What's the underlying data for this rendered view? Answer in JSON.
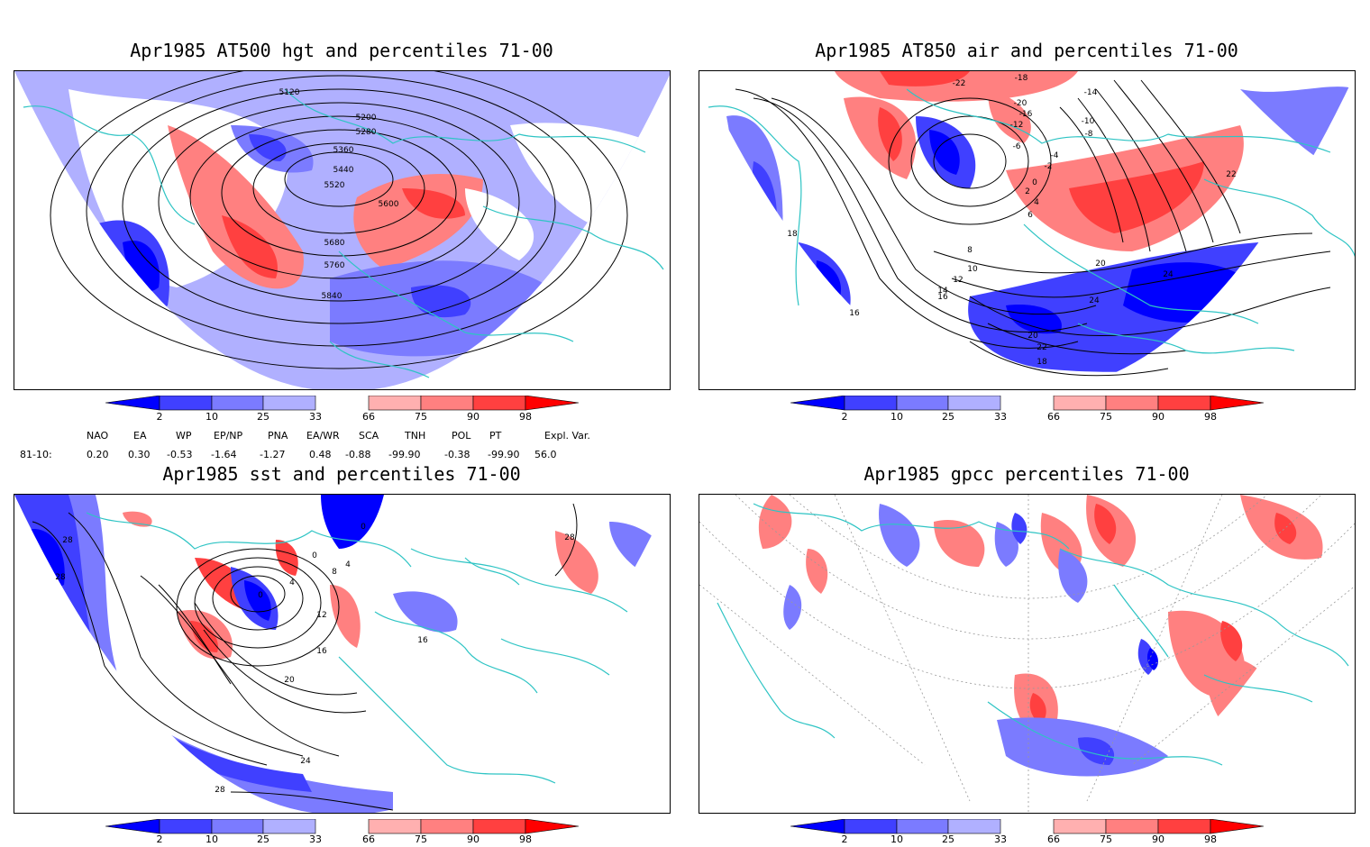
{
  "panels": [
    {
      "id": "p1",
      "title": "Apr1985 AT500 hgt and percentiles 71-00",
      "contour_labels": [
        "5120",
        "5200",
        "5280",
        "5360",
        "5440",
        "5520",
        "5600",
        "5680",
        "5760",
        "5840"
      ]
    },
    {
      "id": "p2",
      "title": "Apr1985 AT850 air and percentiles 71-00",
      "contour_labels": [
        "-22",
        "-18",
        "-20",
        "-16",
        "-14",
        "-12",
        "-10",
        "-8",
        "-6",
        "-4",
        "-2",
        "0",
        "2",
        "4",
        "6",
        "8",
        "10",
        "12",
        "14",
        "16",
        "18",
        "20",
        "22",
        "24",
        "16",
        "18",
        "20",
        "22",
        "24"
      ]
    },
    {
      "id": "p3",
      "title": "Apr1985 sst and percentiles 71-00",
      "contour_labels": [
        "28",
        "28",
        "0",
        "0",
        "4",
        "8",
        "12",
        "16",
        "16",
        "20",
        "24",
        "28",
        "28",
        "0",
        "4"
      ]
    },
    {
      "id": "p4",
      "title": "Apr1985 gpcc percentiles 71-00",
      "contour_labels": []
    }
  ],
  "colorbar": {
    "labels": [
      "2",
      "10",
      "25",
      "33",
      "66",
      "75",
      "90",
      "98"
    ],
    "colors": {
      "b1": "#0000ff",
      "b2": "#4040ff",
      "b3": "#7b7bff",
      "b4": "#b0b0ff",
      "r1": "#ffb0b0",
      "r2": "#ff8080",
      "r3": "#ff4040",
      "r4": "#ff0000"
    }
  },
  "teleconnections": {
    "headers": [
      "NAO",
      "EA",
      "WP",
      "EP/NP",
      "PNA",
      "EA/WR",
      "SCA",
      "TNH",
      "POL",
      "PT",
      "Expl. Var."
    ],
    "row_label": "81-10:",
    "values": [
      "0.20",
      "0.30",
      "-0.53",
      "-1.64",
      "-1.27",
      "0.48",
      "-0.88",
      "-99.90",
      "-0.38",
      "-99.90",
      "56.0"
    ]
  },
  "map_colors": {
    "coast": "#2ec4c4",
    "contour": "#000000",
    "grid": "#999999"
  }
}
